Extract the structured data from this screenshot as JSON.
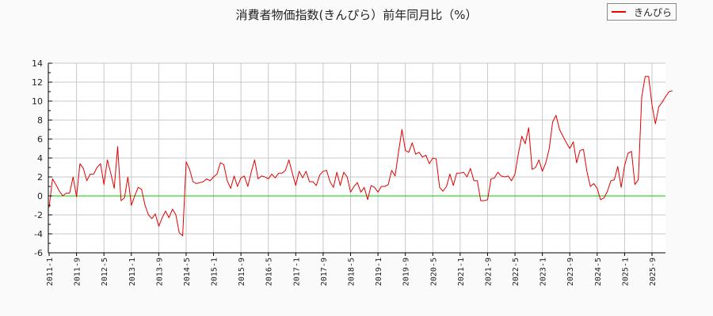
{
  "title": "消費者物価指数(きんぴら）前年同月比（%）",
  "legend": {
    "label": "きんぴら",
    "color": "#e00000"
  },
  "chart_data": {
    "type": "line",
    "title": "消費者物価指数(きんぴら）前年同月比（%）",
    "xlabel": "",
    "ylabel": "",
    "ylim": [
      -6,
      14
    ],
    "yticks": [
      -6,
      -4,
      -2,
      0,
      2,
      4,
      6,
      8,
      10,
      12,
      14
    ],
    "xtick_labels": [
      "2011-1",
      "2011-9",
      "2012-5",
      "2013-1",
      "2013-9",
      "2014-5",
      "2015-1",
      "2015-9",
      "2016-5",
      "2017-1",
      "2017-9",
      "2018-5",
      "2019-1",
      "2019-9",
      "2020-5",
      "2021-1",
      "2021-9",
      "2022-5",
      "2023-1",
      "2023-9",
      "2024-5",
      "2025-1",
      "2025-9"
    ],
    "grid": true,
    "legend_position": "top-right",
    "reference_line": {
      "y": 0,
      "color": "#00cc00"
    },
    "start": "2011-1",
    "frequency": "monthly",
    "series": [
      {
        "name": "きんぴら",
        "color": "#e00000",
        "values": [
          -1.2,
          1.8,
          1.2,
          0.5,
          0.0,
          0.3,
          0.3,
          2.0,
          -0.1,
          3.4,
          2.9,
          1.6,
          2.3,
          2.3,
          3.0,
          3.4,
          1.2,
          3.8,
          2.4,
          0.8,
          5.2,
          -0.5,
          -0.2,
          2.0,
          -1.0,
          0.0,
          0.9,
          0.7,
          -1.0,
          -2.0,
          -2.4,
          -1.9,
          -3.2,
          -2.3,
          -1.6,
          -2.3,
          -1.4,
          -2.0,
          -3.9,
          -4.2,
          3.6,
          2.8,
          1.5,
          1.3,
          1.4,
          1.5,
          1.8,
          1.6,
          2.0,
          2.3,
          3.5,
          3.3,
          1.6,
          0.8,
          2.1,
          1.0,
          1.9,
          2.1,
          1.0,
          2.5,
          3.8,
          1.8,
          2.1,
          2.0,
          1.8,
          2.3,
          1.9,
          2.4,
          2.4,
          2.7,
          3.8,
          2.4,
          1.1,
          2.6,
          1.9,
          2.6,
          1.5,
          1.5,
          1.1,
          2.2,
          2.6,
          2.7,
          1.5,
          0.9,
          2.5,
          1.1,
          2.5,
          2.0,
          0.4,
          1.0,
          1.4,
          0.4,
          0.9,
          -0.4,
          1.1,
          0.9,
          0.4,
          1.0,
          1.0,
          1.2,
          2.7,
          2.1,
          4.6,
          7.0,
          4.8,
          4.6,
          5.6,
          4.4,
          4.6,
          4.1,
          4.3,
          3.4,
          4.0,
          3.9,
          0.9,
          0.5,
          1.0,
          2.3,
          1.1,
          2.4,
          2.4,
          2.5,
          2.0,
          2.9,
          1.6,
          1.6,
          -0.5,
          -0.5,
          -0.4,
          1.8,
          1.9,
          2.5,
          2.1,
          2.0,
          2.1,
          1.6,
          2.3,
          4.5,
          6.3,
          5.5,
          7.2,
          2.8,
          3.0,
          3.8,
          2.6,
          3.5,
          5.0,
          7.8,
          8.5,
          7.0,
          6.3,
          5.6,
          5.0,
          5.7,
          3.5,
          4.8,
          4.9,
          2.6,
          1.0,
          1.3,
          0.8,
          -0.4,
          -0.2,
          0.5,
          1.6,
          1.7,
          3.1,
          0.9,
          3.2,
          4.5,
          4.7,
          1.2,
          1.7,
          10.4,
          12.6,
          12.6,
          9.6,
          7.6,
          9.4,
          9.9,
          10.5,
          11.0,
          11.1
        ]
      }
    ]
  }
}
